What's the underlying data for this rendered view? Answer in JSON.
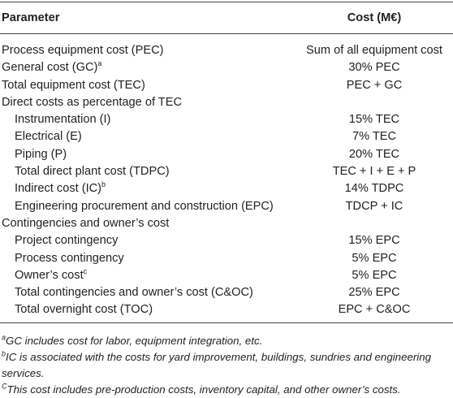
{
  "table": {
    "columns": [
      "Parameter",
      "Cost (M€)"
    ],
    "rows": [
      {
        "parameter": "Process equipment cost (PEC)",
        "cost": "Sum of all equipment cost"
      },
      {
        "parameter": "General cost (GC)",
        "note": "a",
        "cost": "30% PEC"
      },
      {
        "parameter": "Total equipment cost (TEC)",
        "cost": "PEC + GC"
      },
      {
        "parameter": "Direct costs as percentage of TEC",
        "rows": [
          {
            "parameter": "Instrumentation (I)",
            "cost": "15% TEC"
          },
          {
            "parameter": "Electrical (E)",
            "cost": "7% TEC"
          },
          {
            "parameter": "Piping (P)",
            "cost": "20% TEC"
          },
          {
            "parameter": "Total direct plant cost (TDPC)",
            "cost": "TEC + I + E + P"
          },
          {
            "parameter": "Indirect cost (IC)",
            "note": "b",
            "cost": "14% TDPC"
          },
          {
            "parameter": "Engineering procurement and construction (EPC)",
            "cost": "TDCP + IC"
          }
        ]
      },
      {
        "parameter": "Contingencies and owner’s cost",
        "rows": [
          {
            "parameter": "Project contingency",
            "cost": "15% EPC"
          },
          {
            "parameter": "Process contingency",
            "cost": "5% EPC"
          },
          {
            "parameter": "Owner’s cost",
            "note": "c",
            "cost": "5% EPC"
          },
          {
            "parameter": "Total contingencies and owner’s cost (C&OC)",
            "cost": "25% EPC"
          },
          {
            "parameter": "Total overnight cost (TOC)",
            "cost": "EPC + C&OC"
          }
        ]
      }
    ],
    "footnotes": [
      {
        "marker": "a",
        "text": "GC includes cost for labor, equipment integration, etc."
      },
      {
        "marker": "b",
        "text": "IC is associated with the costs for yard improvement, buildings, sundries and engineering services."
      },
      {
        "marker": "C",
        "text": "This cost includes pre-production costs, inventory capital, and other owner’s costs."
      }
    ]
  }
}
